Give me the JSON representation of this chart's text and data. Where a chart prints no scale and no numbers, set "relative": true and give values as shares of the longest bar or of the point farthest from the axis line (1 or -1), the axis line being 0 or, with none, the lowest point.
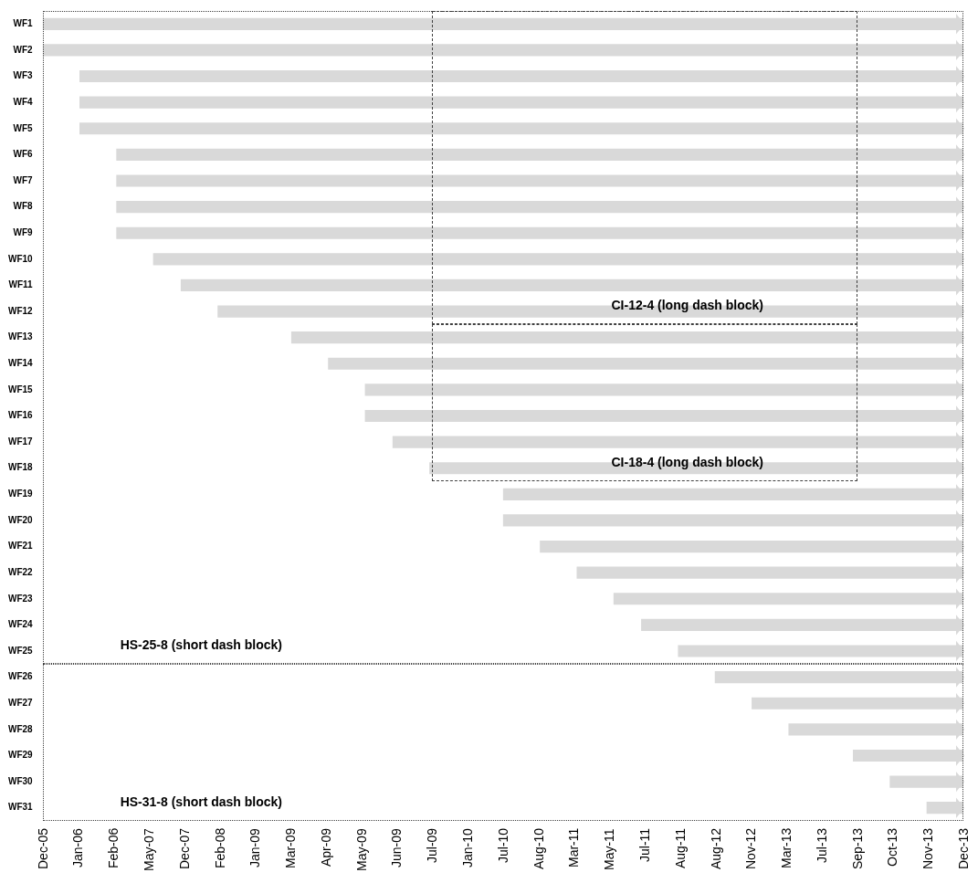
{
  "chart_data": {
    "type": "bar",
    "orientation": "horizontal",
    "relative": true,
    "categories": [
      "WF1",
      "WF2",
      "WF3",
      "WF4",
      "WF5",
      "WF6",
      "WF7",
      "WF8",
      "WF9",
      "WF10",
      "WF11",
      "WF12",
      "WF13",
      "WF14",
      "WF15",
      "WF16",
      "WF17",
      "WF18",
      "WF19",
      "WF20",
      "WF21",
      "WF22",
      "WF23",
      "WF24",
      "WF25",
      "WF26",
      "WF27",
      "WF28",
      "WF29",
      "WF30",
      "WF31"
    ],
    "values": [
      1,
      1,
      0.96,
      0.96,
      0.96,
      0.92,
      0.92,
      0.92,
      0.92,
      0.88,
      0.85,
      0.81,
      0.73,
      0.69,
      0.65,
      0.65,
      0.62,
      0.58,
      0.5,
      0.5,
      0.46,
      0.42,
      0.38,
      0.35,
      0.31,
      0.27,
      0.23,
      0.19,
      0.12,
      0.08,
      0.04
    ],
    "color": "#d9d9d9",
    "annotations": [
      "CI-12-4 (long dash block)",
      "CI-18-4 (long dash block)",
      "HS-25-8 (short dash block)",
      "HS-31-8 (short dash block)",
      "Dec-05",
      "Jan-06",
      "Feb-06",
      "May-07",
      "Dec-07",
      "Feb-08",
      "Jan-09",
      "Mar-09",
      "Apr-09",
      "May-09",
      "Jun-09",
      "Jul-09",
      "Jan-10",
      "Jul-10",
      "Aug-10",
      "Mar-11",
      "May-11",
      "Jul-11",
      "Aug-11",
      "Aug-12",
      "Nov-12",
      "Mar-13",
      "Jul-13",
      "Sep-13",
      "Oct-13",
      "Nov-13",
      "Dec-13"
    ]
  }
}
